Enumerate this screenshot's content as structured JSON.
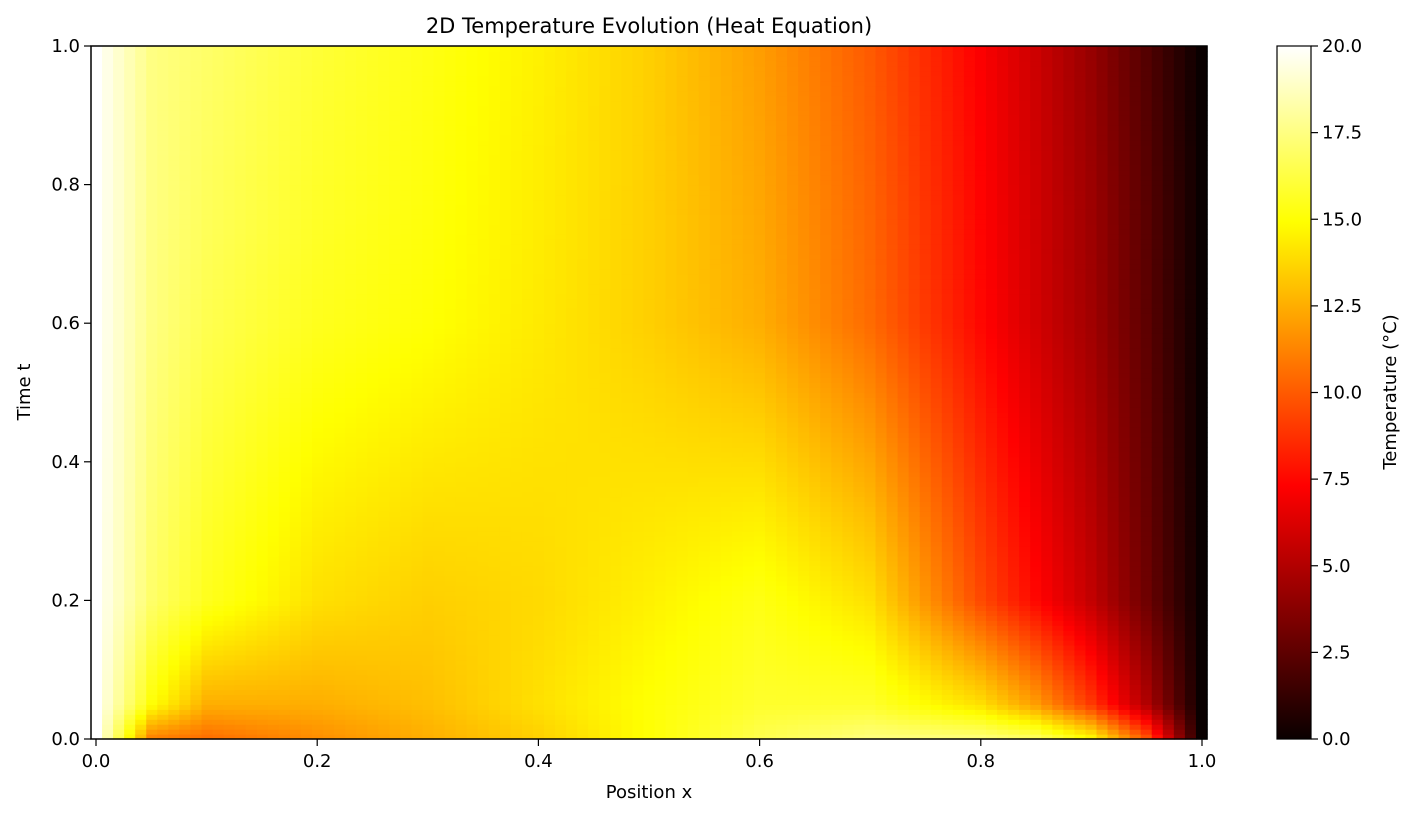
{
  "chart_data": {
    "type": "heatmap",
    "title": "2D Temperature Evolution (Heat Equation)",
    "xlabel": "Position x",
    "ylabel": "Time t",
    "xlim": [
      0.0,
      1.0
    ],
    "ylim": [
      0.0,
      1.0
    ],
    "x_ticks": [
      "0.0",
      "0.2",
      "0.4",
      "0.6",
      "0.8",
      "1.0"
    ],
    "y_ticks": [
      "0.0",
      "0.2",
      "0.4",
      "0.6",
      "0.8",
      "1.0"
    ],
    "colormap": "hot",
    "colorbar": {
      "label": "Temperature (°C)",
      "range": [
        0.0,
        20.0
      ],
      "ticks": [
        "0.0",
        "2.5",
        "5.0",
        "7.5",
        "10.0",
        "12.5",
        "15.0",
        "17.5",
        "20.0"
      ]
    },
    "grid_shape": {
      "nx": 101,
      "nt": 5
    },
    "t_samples": [
      0.0,
      0.05,
      0.2,
      0.6,
      1.0
    ],
    "x_samples": [
      0.0,
      0.05,
      0.1,
      0.2,
      0.3,
      0.4,
      0.5,
      0.6,
      0.7,
      0.8,
      0.85,
      0.9,
      0.95,
      1.0
    ],
    "temperature_rows": [
      [
        20.0,
        11.0,
        10.5,
        11.5,
        12.5,
        13.5,
        15.0,
        16.5,
        17.5,
        17.5,
        17.0,
        15.0,
        10.0,
        0.0
      ],
      [
        20.0,
        15.0,
        12.5,
        12.5,
        13.0,
        14.0,
        15.0,
        15.8,
        15.8,
        14.0,
        12.0,
        9.0,
        5.0,
        0.0
      ],
      [
        20.0,
        17.0,
        15.5,
        14.0,
        13.5,
        13.8,
        14.5,
        15.3,
        14.0,
        9.5,
        7.5,
        5.5,
        3.0,
        0.0
      ],
      [
        20.0,
        17.5,
        16.5,
        15.5,
        15.0,
        14.3,
        13.5,
        12.5,
        10.5,
        7.5,
        6.0,
        4.5,
        2.5,
        0.0
      ],
      [
        20.0,
        17.5,
        17.0,
        16.0,
        15.3,
        14.5,
        13.5,
        12.0,
        10.0,
        7.2,
        5.8,
        4.2,
        2.2,
        0.0
      ]
    ]
  }
}
